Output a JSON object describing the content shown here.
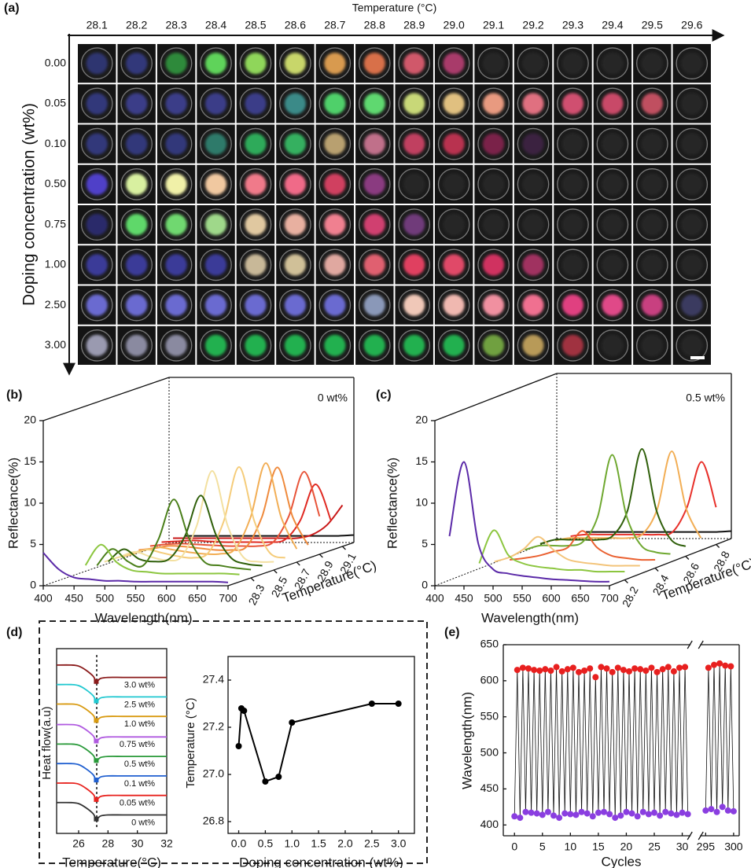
{
  "chart_data": [
    {
      "type": "image-grid",
      "panel": "(a)",
      "x_label": "Temperature (°C)",
      "y_label": "Doping concentration (wt%)",
      "columns": [
        "28.1",
        "28.2",
        "28.3",
        "28.4",
        "28.5",
        "28.6",
        "28.7",
        "28.8",
        "28.9",
        "29.0",
        "29.1",
        "29.2",
        "29.3",
        "29.4",
        "29.5",
        "29.6"
      ],
      "rows": [
        "0.00",
        "0.05",
        "0.10",
        "0.50",
        "0.75",
        "1.00",
        "2.50",
        "3.00"
      ],
      "cell_colors": [
        [
          "#2f3470",
          "#33377a",
          "#2f8a3a",
          "#5fd35a",
          "#8fd65a",
          "#c8d66a",
          "#d89a50",
          "#d8704a",
          "#d0586a",
          "#a83a6a",
          "#262626",
          "#262626",
          "#262626",
          "#262626",
          "#262626",
          "#262626"
        ],
        [
          "#33377a",
          "#3a3d88",
          "#3a3d88",
          "#3a3d88",
          "#3a3d88",
          "#3a8a88",
          "#4fd06a",
          "#5fd870",
          "#c8d878",
          "#e0c080",
          "#e89a80",
          "#e07080",
          "#d05070",
          "#c84868",
          "#c05060",
          "#262626"
        ],
        [
          "#33377a",
          "#33377a",
          "#33377a",
          "#2f7a6a",
          "#2faa5a",
          "#35b060",
          "#b8a070",
          "#c0708a",
          "#c04060",
          "#b83050",
          "#7a2048",
          "#3a2040",
          "#262626",
          "#262626",
          "#262626",
          "#262626"
        ],
        [
          "#5040c8",
          "#d8f0a0",
          "#f0f0a8",
          "#f0c8a0",
          "#f07a8a",
          "#f06a88",
          "#d04060",
          "#8a3a80",
          "#262626",
          "#262626",
          "#262626",
          "#262626",
          "#262626",
          "#262626",
          "#262626",
          "#262626"
        ],
        [
          "#2a2a6a",
          "#5fd86a",
          "#6fd870",
          "#9fd88a",
          "#e0c8a0",
          "#e8b0a0",
          "#f08090",
          "#d04070",
          "#703a7a",
          "#262626",
          "#262626",
          "#262626",
          "#262626",
          "#262626",
          "#262626",
          "#262626"
        ],
        [
          "#3a3a98",
          "#3a3a98",
          "#3a3a98",
          "#3a3a98",
          "#c8b898",
          "#d0c098",
          "#e0a8a0",
          "#e06070",
          "#e04060",
          "#e04868",
          "#d03060",
          "#a03060",
          "#262626",
          "#262626",
          "#262626",
          "#262626"
        ],
        [
          "#6a6ad0",
          "#6a6ad0",
          "#6a6ad0",
          "#6a6ad0",
          "#6a6ad0",
          "#6a6ad0",
          "#6a6ad0",
          "#8a98b8",
          "#f0c8b8",
          "#f0b8b0",
          "#f090a0",
          "#f07090",
          "#e04080",
          "#e04888",
          "#c84080",
          "#3a3a60"
        ],
        [
          "#9a9ab0",
          "#8a8aa0",
          "#8a8aa0",
          "#20b050",
          "#20b050",
          "#20b050",
          "#20b050",
          "#20b050",
          "#20b050",
          "#20b050",
          "#70a040",
          "#b89a58",
          "#a03040",
          "#262626",
          "#262626",
          "#262626"
        ]
      ]
    },
    {
      "type": "waterfall-3d",
      "panel": "(b)",
      "annotation": "0 wt%",
      "x_label": "Wavelength(nm)",
      "y_label": "Reflectance(%)",
      "z_label": "Temperature(°C)",
      "x": [
        400,
        425,
        450,
        475,
        500,
        525,
        550,
        575,
        600,
        625,
        650,
        675,
        700
      ],
      "xlim": [
        400,
        700
      ],
      "xticks": [
        400,
        450,
        500,
        550,
        600,
        650,
        700
      ],
      "ylim": [
        0,
        20
      ],
      "yticks": [
        0,
        5,
        10,
        15,
        20
      ],
      "zlim": [
        28.1,
        29.2
      ],
      "zticks": [
        28.3,
        28.5,
        28.7,
        28.9,
        29.1
      ],
      "series": [
        {
          "z": 28.1,
          "color": "#5b2aa8",
          "values": [
            4.0,
            2.0,
            1.0,
            0.8,
            0.6,
            0.6,
            0.5,
            0.5,
            0.5,
            0.5,
            0.5,
            0.5,
            0.4
          ]
        },
        {
          "z": 28.2,
          "color": "#8cc63f",
          "values": [
            null,
            null,
            2.0,
            4.5,
            2.4,
            1.4,
            1.2,
            1.0,
            1.0,
            1.0,
            1.0,
            1.0,
            0.9
          ]
        },
        {
          "z": 28.3,
          "color": "#4a7f1a",
          "values": [
            null,
            null,
            1.5,
            3.5,
            2.0,
            1.5,
            4.7,
            9.5,
            4.7,
            1.9,
            1.5,
            1.2,
            1.0
          ]
        },
        {
          "z": 28.4,
          "color": "#2f5f0a",
          "values": [
            null,
            null,
            1.5,
            3.0,
            1.8,
            1.5,
            1.9,
            4.7,
            9.5,
            4.7,
            1.9,
            1.2,
            1.0
          ]
        },
        {
          "z": 28.5,
          "color": "#f3e0a0",
          "values": [
            null,
            1.0,
            1.6,
            2.2,
            1.6,
            1.2,
            1.6,
            5.4,
            12.0,
            5.4,
            1.6,
            1.0,
            1.0
          ]
        },
        {
          "z": 28.6,
          "color": "#f5cc7a",
          "values": [
            null,
            1.0,
            1.4,
            2.0,
            1.6,
            1.2,
            1.0,
            1.6,
            5.4,
            12.0,
            5.4,
            1.6,
            1.0
          ]
        },
        {
          "z": 28.7,
          "color": "#f2ae55",
          "values": [
            null,
            1.0,
            1.4,
            1.8,
            1.5,
            1.2,
            1.0,
            1.0,
            1.6,
            5.4,
            12.0,
            5.4,
            1.6
          ]
        },
        {
          "z": 28.8,
          "color": "#ef8a3c",
          "values": [
            null,
            1.0,
            1.2,
            1.5,
            1.4,
            1.2,
            1.0,
            1.0,
            1.4,
            5.0,
            11.0,
            5.0,
            1.6
          ]
        },
        {
          "z": 28.9,
          "color": "#e8553a",
          "values": [
            null,
            1.0,
            1.2,
            1.3,
            1.2,
            1.1,
            1.0,
            1.0,
            1.0,
            1.5,
            4.6,
            10.0,
            4.6
          ]
        },
        {
          "z": 29.0,
          "color": "#e02a22",
          "values": [
            null,
            1.0,
            1.1,
            1.2,
            1.1,
            1.0,
            1.0,
            1.0,
            1.0,
            1.3,
            3.6,
            8.0,
            3.6
          ]
        },
        {
          "z": 29.1,
          "color": "#c81818",
          "values": [
            null,
            1.0,
            1.0,
            1.0,
            1.0,
            1.0,
            1.0,
            1.0,
            1.0,
            1.0,
            1.4,
            2.6,
            5.0
          ]
        },
        {
          "z": 29.2,
          "color": "#111111",
          "values": [
            null,
            0.8,
            0.8,
            0.8,
            0.8,
            0.8,
            0.8,
            0.8,
            0.8,
            0.8,
            0.8,
            0.8,
            0.9
          ]
        }
      ]
    },
    {
      "type": "waterfall-3d",
      "panel": "(c)",
      "annotation": "0.5 wt%",
      "x_label": "Wavelength(nm)",
      "y_label": "Reflectance(%)",
      "z_label": "Temperature(°C)",
      "x": [
        400,
        425,
        450,
        475,
        500,
        525,
        550,
        575,
        600,
        625,
        650,
        675,
        700
      ],
      "xlim": [
        400,
        700
      ],
      "xticks": [
        400,
        450,
        500,
        550,
        600,
        650,
        700
      ],
      "ylim": [
        0,
        20
      ],
      "yticks": [
        0,
        5,
        10,
        15,
        20
      ],
      "zlim": [
        28.1,
        28.9
      ],
      "zticks": [
        28.2,
        28.4,
        28.6,
        28.8
      ],
      "series": [
        {
          "z": 28.1,
          "color": "#5b2aa8",
          "values": [
            null,
            6.0,
            15.0,
            5.0,
            2.0,
            1.5,
            1.2,
            1.0,
            0.8,
            0.7,
            0.6,
            0.5,
            0.5
          ]
        },
        {
          "z": 28.2,
          "color": "#8cc63f",
          "values": [
            null,
            null,
            2.0,
            6.0,
            3.0,
            2.0,
            1.6,
            1.4,
            1.2,
            1.2,
            1.0,
            1.0,
            1.0
          ]
        },
        {
          "z": 28.3,
          "color": "#f3c47a",
          "values": [
            null,
            null,
            1.5,
            2.0,
            3.0,
            4.5,
            3.0,
            1.8,
            1.4,
            1.2,
            1.0,
            1.0,
            1.0
          ]
        },
        {
          "z": 28.4,
          "color": "#ea6030",
          "values": [
            null,
            null,
            1.0,
            1.2,
            1.5,
            2.0,
            2.5,
            4.5,
            2.5,
            1.5,
            1.2,
            1.0,
            1.0
          ]
        },
        {
          "z": 28.5,
          "color": "#6fa830",
          "values": [
            null,
            null,
            1.5,
            2.0,
            2.0,
            2.0,
            2.5,
            5.5,
            13.0,
            5.5,
            2.0,
            1.2,
            1.0
          ]
        },
        {
          "z": 28.6,
          "color": "#2f5f0a",
          "values": [
            null,
            null,
            1.5,
            2.0,
            2.0,
            2.0,
            2.0,
            2.5,
            5.5,
            13.0,
            5.5,
            2.0,
            1.2
          ]
        },
        {
          "z": 28.7,
          "color": "#f2ae55",
          "values": [
            null,
            null,
            1.2,
            1.5,
            1.5,
            1.5,
            1.5,
            1.5,
            2.0,
            5.0,
            12.0,
            5.0,
            1.5
          ]
        },
        {
          "z": 28.8,
          "color": "#e8302a",
          "values": [
            null,
            null,
            1.0,
            1.2,
            1.2,
            1.2,
            1.2,
            1.2,
            1.2,
            1.5,
            4.5,
            10.0,
            4.5
          ]
        },
        {
          "z": 28.9,
          "color": "#111111",
          "values": [
            null,
            null,
            0.8,
            0.8,
            0.8,
            0.8,
            0.8,
            0.8,
            0.8,
            0.8,
            0.8,
            0.8,
            0.9
          ]
        }
      ]
    },
    {
      "type": "stacked-line",
      "panel": "(d)",
      "x_label": "Temperature(°C)",
      "y_label": "Heat flow(a.u)",
      "x": [
        24.5,
        25.5,
        26.0,
        26.5,
        27.0,
        27.2,
        27.5,
        28,
        29,
        30,
        31,
        32
      ],
      "xlim": [
        24.5,
        32
      ],
      "xticks": [
        26,
        28,
        30,
        32
      ],
      "ylim": [
        0,
        9
      ],
      "series": [
        {
          "name": "0 wt%",
          "color": "#333333",
          "values": [
            1.5,
            1.5,
            1.45,
            1.25,
            0.95,
            0.7,
            0.85,
            0.9,
            0.9,
            0.9,
            0.9,
            0.9
          ]
        },
        {
          "name": "0.05 wt%",
          "color": "#e8231f",
          "values": [
            2.45,
            2.45,
            2.4,
            2.2,
            1.9,
            1.65,
            1.8,
            1.85,
            1.85,
            1.85,
            1.85,
            1.85
          ]
        },
        {
          "name": "0.1 wt%",
          "color": "#1f5fd0",
          "values": [
            3.4,
            3.4,
            3.35,
            3.15,
            2.85,
            2.6,
            2.75,
            2.8,
            2.8,
            2.8,
            2.8,
            2.8
          ]
        },
        {
          "name": "0.5 wt%",
          "color": "#2a9a3a",
          "values": [
            4.35,
            4.35,
            4.3,
            4.1,
            3.8,
            3.55,
            3.7,
            3.75,
            3.75,
            3.75,
            3.75,
            3.75
          ]
        },
        {
          "name": "0.75 wt%",
          "color": "#b05ae0",
          "values": [
            5.3,
            5.3,
            5.25,
            5.05,
            4.75,
            4.5,
            4.65,
            4.7,
            4.7,
            4.7,
            4.7,
            4.7
          ]
        },
        {
          "name": "1.0 wt%",
          "color": "#d89a10",
          "values": [
            6.3,
            6.3,
            6.25,
            6.05,
            5.75,
            5.5,
            5.65,
            5.7,
            5.7,
            5.7,
            5.7,
            5.7
          ]
        },
        {
          "name": "2.5 wt%",
          "color": "#20c8d0",
          "values": [
            7.25,
            7.25,
            7.2,
            7.0,
            6.7,
            6.45,
            6.6,
            6.65,
            6.65,
            6.65,
            6.65,
            6.65
          ]
        },
        {
          "name": "3.0 wt%",
          "color": "#8a1a1a",
          "values": [
            8.2,
            8.2,
            8.15,
            7.95,
            7.65,
            7.4,
            7.55,
            7.6,
            7.6,
            7.6,
            7.6,
            7.6
          ]
        }
      ]
    },
    {
      "type": "line",
      "x_label": "Doping concentration (wt%)",
      "y_label": "Temperature (°C)",
      "x": [
        0,
        0.05,
        0.1,
        0.5,
        0.75,
        1.0,
        2.5,
        3.0
      ],
      "values": [
        27.12,
        27.28,
        27.27,
        26.97,
        26.99,
        27.22,
        27.3,
        27.3
      ],
      "xlim": [
        -0.2,
        3.3
      ],
      "xticks": [
        {
          "value": 0,
          "label": "0.0"
        },
        0.5,
        {
          "value": 1,
          "label": "1.0"
        },
        1.5,
        {
          "value": 2,
          "label": "2.0"
        },
        2.5,
        {
          "value": 3,
          "label": "3.0"
        }
      ],
      "ylim": [
        26.75,
        27.5
      ],
      "yticks": [
        26.8,
        {
          "value": 27,
          "label": "27.0"
        },
        27.2,
        27.4
      ],
      "color": "#000000"
    },
    {
      "type": "scatter",
      "panel": "(e)",
      "x_label": "Cycles",
      "y_label": "Wavelength(nm)",
      "xlim": [
        -2,
        301
      ],
      "x_break": [
        31.5,
        294
      ],
      "xticks": [
        0,
        5,
        10,
        15,
        20,
        25,
        30,
        295,
        300
      ],
      "ylim": [
        385,
        650
      ],
      "yticks": [
        400,
        450,
        500,
        550,
        600,
        650
      ],
      "series": [
        {
          "color": "#e8201f",
          "x": [
            0.5,
            1.5,
            2.5,
            3.5,
            4.5,
            5.5,
            6.5,
            7.5,
            8.5,
            9.5,
            10.5,
            11.5,
            12.5,
            13.5,
            14.5,
            15.5,
            16.5,
            17.5,
            18.5,
            19.5,
            20.5,
            21.5,
            22.5,
            23.5,
            24.5,
            25.5,
            26.5,
            27.5,
            28.5,
            29.5,
            30.5,
            295.5,
            296.5,
            297.5,
            298.5,
            299.5
          ],
          "values": [
            615,
            618,
            617,
            615,
            614,
            616,
            614,
            619,
            613,
            616,
            618,
            612,
            614,
            617,
            605,
            619,
            617,
            612,
            618,
            615,
            613,
            617,
            616,
            614,
            618,
            612,
            616,
            619,
            613,
            618,
            619,
            618,
            622,
            624,
            621,
            620
          ]
        },
        {
          "color": "#8a3ee0",
          "x": [
            0,
            1,
            2,
            3,
            4,
            5,
            6,
            7,
            8,
            9,
            10,
            11,
            12,
            13,
            14,
            15,
            16,
            17,
            18,
            19,
            20,
            21,
            22,
            23,
            24,
            25,
            26,
            27,
            28,
            29,
            30,
            31,
            295,
            296,
            297,
            298,
            299,
            300
          ],
          "values": [
            412,
            410,
            418,
            417,
            416,
            414,
            418,
            413,
            410,
            416,
            415,
            414,
            418,
            416,
            412,
            417,
            418,
            415,
            410,
            413,
            418,
            416,
            412,
            418,
            415,
            417,
            413,
            418,
            416,
            414,
            417,
            415,
            420,
            422,
            418,
            425,
            420,
            419
          ]
        }
      ]
    }
  ]
}
